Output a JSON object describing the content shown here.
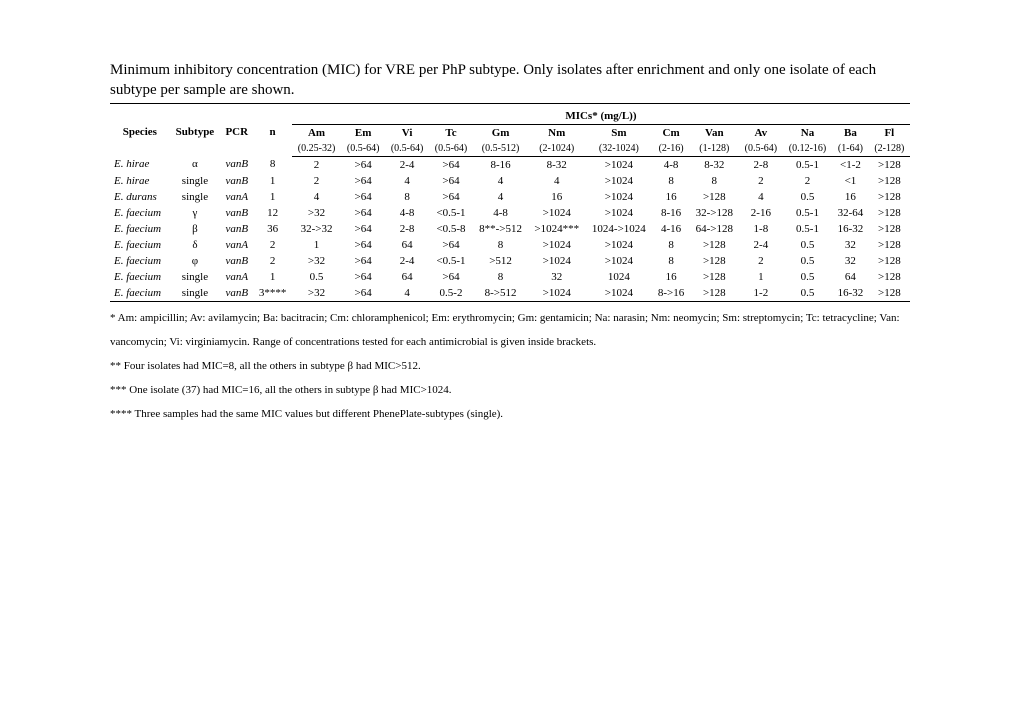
{
  "caption": "Minimum inhibitory concentration (MIC) for VRE per PhP subtype. Only isolates after enrichment and only one isolate of each subtype per sample are shown.",
  "micsHeader": "MICs* (mg/L))",
  "leftCols": [
    "Species",
    "Subtype",
    "PCR",
    "n"
  ],
  "antibiotics": [
    "Am",
    "Em",
    "Vi",
    "Tc",
    "Gm",
    "Nm",
    "Sm",
    "Cm",
    "Van",
    "Av",
    "Na",
    "Ba",
    "Fl"
  ],
  "ranges": [
    "(0.25-32)",
    "(0.5-64)",
    "(0.5-64)",
    "(0.5-64)",
    "(0.5-512)",
    "(2-1024)",
    "(32-1024)",
    "(2-16)",
    "(1-128)",
    "(0.5-64)",
    "(0.12-16)",
    "(1-64)",
    "(2-128)"
  ],
  "rows": [
    {
      "species": "E. hirae",
      "subtype": "α",
      "pcr": "vanB",
      "n": "8",
      "v": [
        "2",
        ">64",
        "2-4",
        ">64",
        "8-16",
        "8-32",
        ">1024",
        "4-8",
        "8-32",
        "2-8",
        "0.5-1",
        "<1-2",
        ">128"
      ]
    },
    {
      "species": "E. hirae",
      "subtype": "single",
      "pcr": "vanB",
      "n": "1",
      "v": [
        "2",
        ">64",
        "4",
        ">64",
        "4",
        "4",
        ">1024",
        "8",
        "8",
        "2",
        "2",
        "<1",
        ">128"
      ]
    },
    {
      "species": "E. durans",
      "subtype": "single",
      "pcr": "vanA",
      "n": "1",
      "v": [
        "4",
        ">64",
        "8",
        ">64",
        "4",
        "16",
        ">1024",
        "16",
        ">128",
        "4",
        "0.5",
        "16",
        ">128"
      ]
    },
    {
      "species": "E. faecium",
      "subtype": "γ",
      "pcr": "vanB",
      "n": "12",
      "v": [
        ">32",
        ">64",
        "4-8",
        "<0.5-1",
        "4-8",
        ">1024",
        ">1024",
        "8-16",
        "32->128",
        "2-16",
        "0.5-1",
        "32-64",
        ">128"
      ]
    },
    {
      "species": "E. faecium",
      "subtype": "β",
      "pcr": "vanB",
      "n": "36",
      "v": [
        "32->32",
        ">64",
        "2-8",
        "<0.5-8",
        "8**->512",
        ">1024***",
        "1024->1024",
        "4-16",
        "64->128",
        "1-8",
        "0.5-1",
        "16-32",
        ">128"
      ]
    },
    {
      "species": "E. faecium",
      "subtype": "δ",
      "pcr": "vanA",
      "n": "2",
      "v": [
        "1",
        ">64",
        "64",
        ">64",
        "8",
        ">1024",
        ">1024",
        "8",
        ">128",
        "2-4",
        "0.5",
        "32",
        ">128"
      ]
    },
    {
      "species": "E. faecium",
      "subtype": "φ",
      "pcr": "vanB",
      "n": "2",
      "v": [
        ">32",
        ">64",
        "2-4",
        "<0.5-1",
        ">512",
        ">1024",
        ">1024",
        "8",
        ">128",
        "2",
        "0.5",
        "32",
        ">128"
      ]
    },
    {
      "species": "E. faecium",
      "subtype": "single",
      "pcr": "vanA",
      "n": "1",
      "v": [
        "0.5",
        ">64",
        "64",
        ">64",
        "8",
        "32",
        "1024",
        "16",
        ">128",
        "1",
        "0.5",
        "64",
        ">128"
      ]
    },
    {
      "species": "E. faecium",
      "subtype": "single",
      "pcr": "vanB",
      "n": "3****",
      "v": [
        ">32",
        ">64",
        "4",
        "0.5-2",
        "8->512",
        ">1024",
        ">1024",
        "8->16",
        ">128",
        "1-2",
        "0.5",
        "16-32",
        ">128"
      ]
    }
  ],
  "footnotes": [
    "* Am: ampicillin; Av: avilamycin; Ba: bacitracin; Cm: chloramphenicol; Em: erythromycin; Gm: gentamicin; Na: narasin; Nm: neomycin; Sm: streptomycin; Tc: tetracycline; Van: vancomycin; Vi: virginiamycin. Range of concentrations tested for each antimicrobial is given inside brackets.",
    "** Four isolates had MIC=8, all the others in subtype β had MIC>512.",
    "*** One isolate (37) had MIC=16, all the others in subtype β had MIC>1024.",
    "**** Three samples had the same MIC values but different PhenePlate-subtypes (single)."
  ]
}
